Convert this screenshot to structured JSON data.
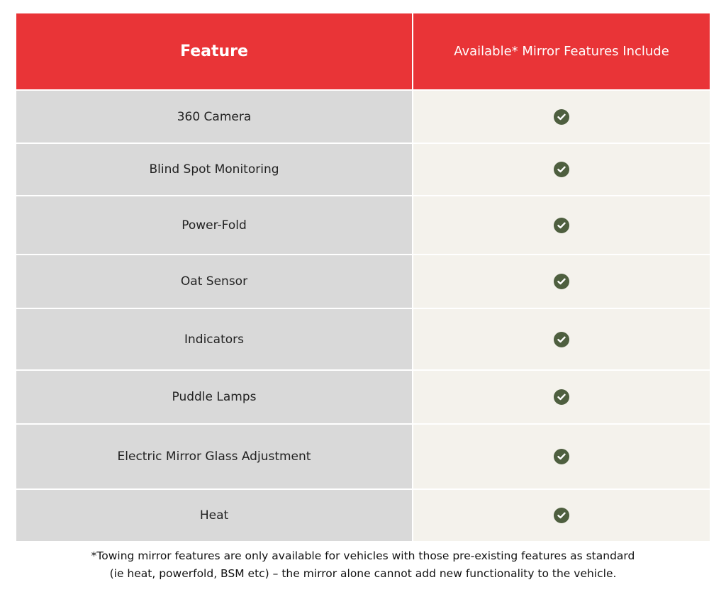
{
  "colors": {
    "header_bg": "#e93437",
    "feature_bg": "#d9d9d9",
    "value_bg": "#f4f2ec",
    "check": "#4e5f3f"
  },
  "header": {
    "feature": "Feature",
    "available": "Available* Mirror Features Include"
  },
  "rows": [
    {
      "feature": "360 Camera",
      "icon": "check-circle-icon"
    },
    {
      "feature": "Blind Spot Monitoring",
      "icon": "check-circle-icon"
    },
    {
      "feature": "Power-Fold",
      "icon": "check-circle-icon"
    },
    {
      "feature": "Oat Sensor",
      "icon": "check-circle-icon"
    },
    {
      "feature": "Indicators",
      "icon": "check-circle-icon"
    },
    {
      "feature": "Puddle Lamps",
      "icon": "check-circle-icon"
    },
    {
      "feature": "Electric Mirror Glass Adjustment",
      "icon": "check-circle-icon"
    },
    {
      "feature": "Heat",
      "icon": "check-circle-icon"
    }
  ],
  "footnote": {
    "line1": "*Towing mirror features are only available for vehicles with those pre-existing features as standard",
    "line2": "(ie heat, powerfold, BSM etc) – the mirror alone cannot add new functionality to the vehicle."
  }
}
